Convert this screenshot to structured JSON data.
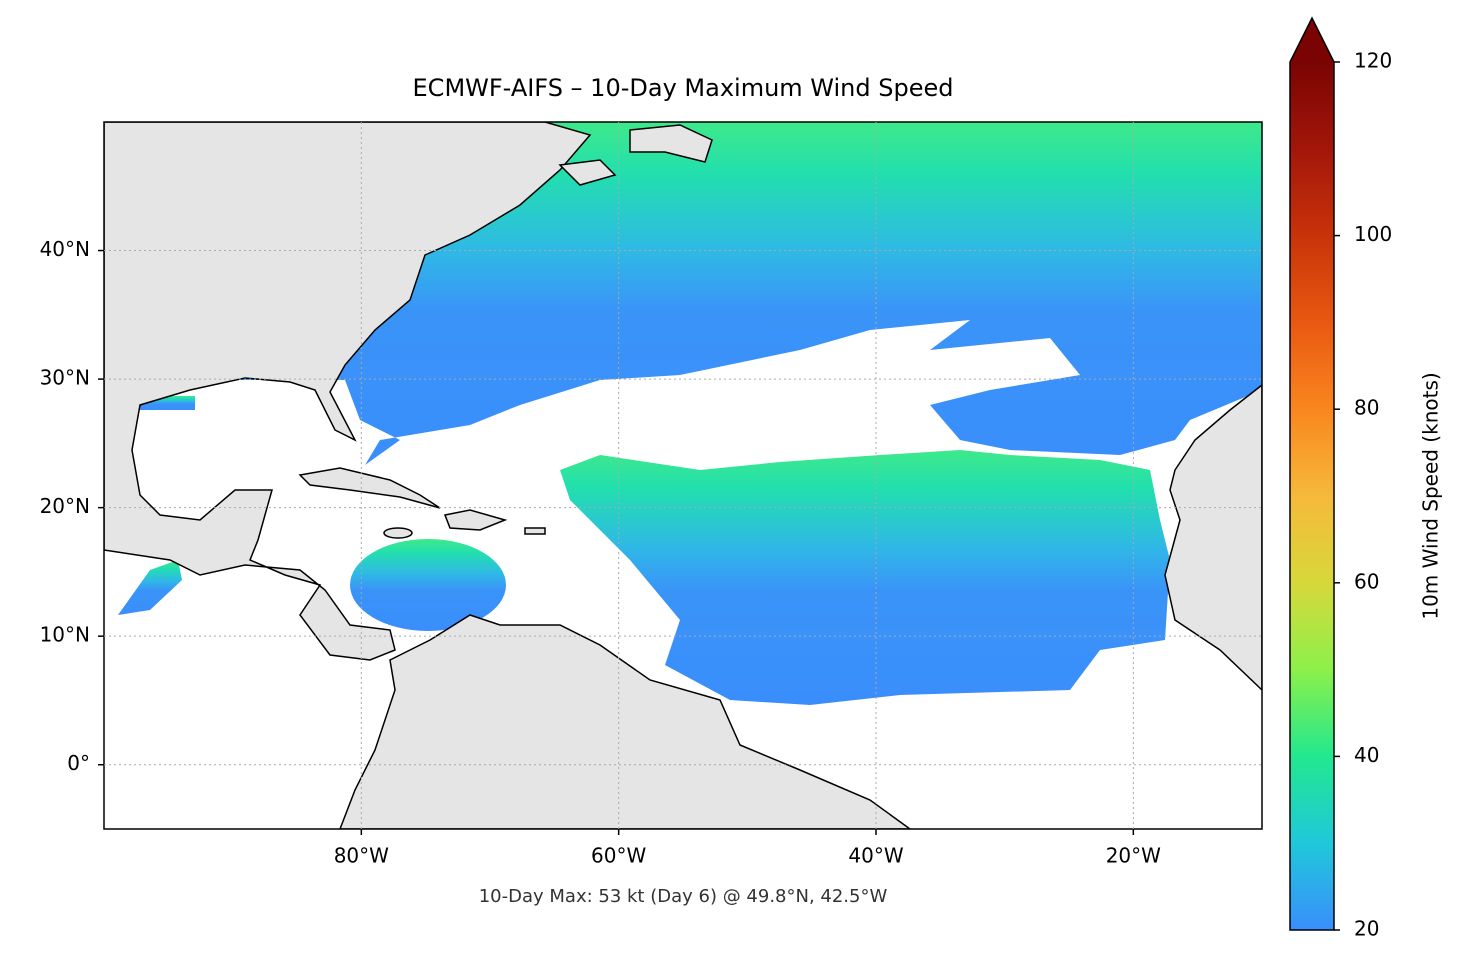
{
  "chart_data": {
    "type": "map",
    "title": "ECMWF-AIFS – 10-Day Maximum Wind Speed",
    "annotation": "10-Day Max: 53 kt (Day 6) @ 49.8°N, 42.5°W",
    "xlim": [
      -100,
      -10
    ],
    "ylim": [
      -5,
      50
    ],
    "xticks": [
      {
        "value": -80,
        "label": "80°W"
      },
      {
        "value": -60,
        "label": "60°W"
      },
      {
        "value": -40,
        "label": "40°W"
      },
      {
        "value": -20,
        "label": "20°W"
      }
    ],
    "yticks": [
      {
        "value": 0,
        "label": "0°"
      },
      {
        "value": 10,
        "label": "10°N"
      },
      {
        "value": 20,
        "label": "20°N"
      },
      {
        "value": 30,
        "label": "30°N"
      },
      {
        "value": 40,
        "label": "40°N"
      }
    ],
    "grid": true,
    "colorbar": {
      "label": "10m Wind Speed (knots)",
      "lim": [
        20,
        120
      ],
      "ticks": [
        20,
        40,
        60,
        80,
        100,
        120
      ],
      "extend": "max"
    }
  }
}
